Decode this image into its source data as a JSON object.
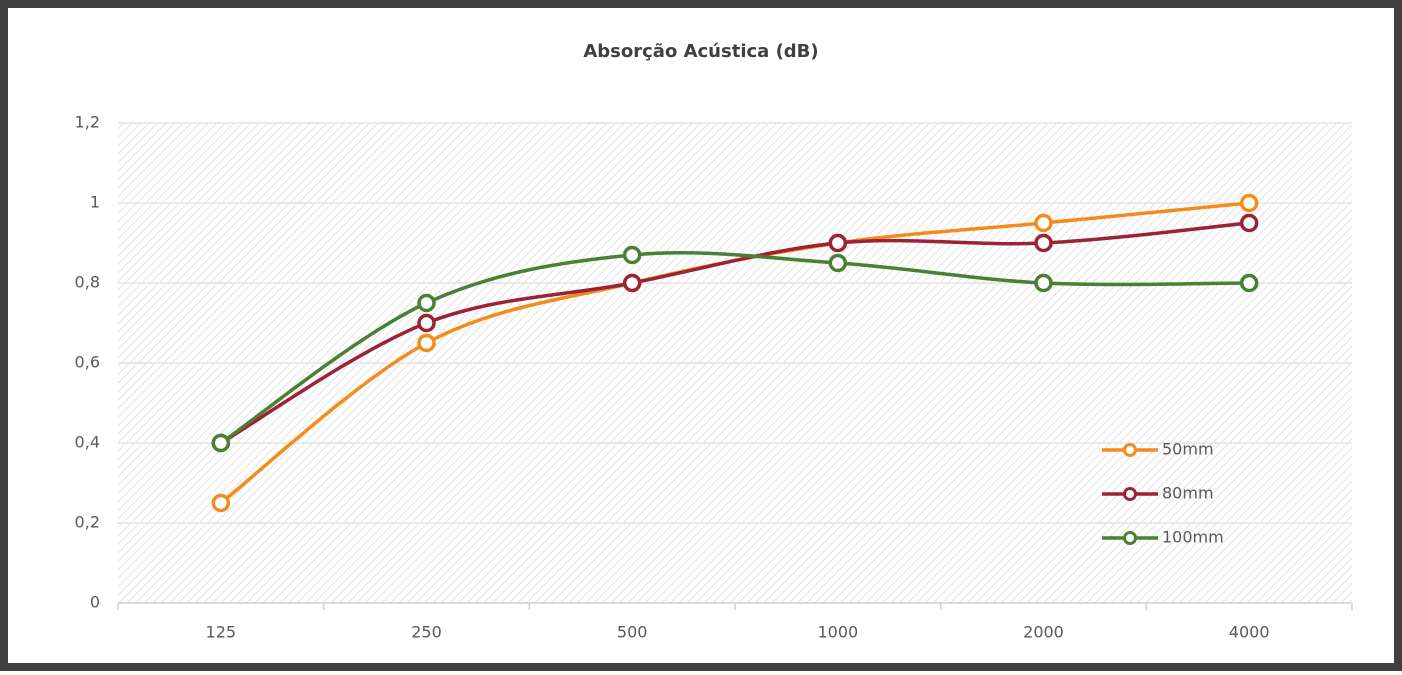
{
  "chart_data": {
    "type": "line",
    "title": "Absorção Acústica (dB)",
    "categories": [
      "125",
      "250",
      "500",
      "1000",
      "2000",
      "4000"
    ],
    "series": [
      {
        "name": "50mm",
        "color": "#f28c1c",
        "values": [
          0.25,
          0.65,
          0.8,
          0.9,
          0.95,
          1.0
        ]
      },
      {
        "name": "80mm",
        "color": "#9b2335",
        "values": [
          0.4,
          0.7,
          0.8,
          0.9,
          0.9,
          0.95
        ]
      },
      {
        "name": "100mm",
        "color": "#4a7f35",
        "values": [
          0.4,
          0.75,
          0.87,
          0.85,
          0.8,
          0.8
        ]
      }
    ],
    "ylim": [
      0,
      1.2
    ],
    "yticks": [
      0,
      {
        "value": 0.2,
        "label": "0,2"
      },
      {
        "value": 0.4,
        "label": "0,4"
      },
      {
        "value": 0.6,
        "label": "0,6"
      },
      {
        "value": 0.8,
        "label": "0,8"
      },
      1,
      {
        "value": 1.2,
        "label": "1,2"
      }
    ],
    "grid": true,
    "smooth": true,
    "legend": "lower right"
  }
}
